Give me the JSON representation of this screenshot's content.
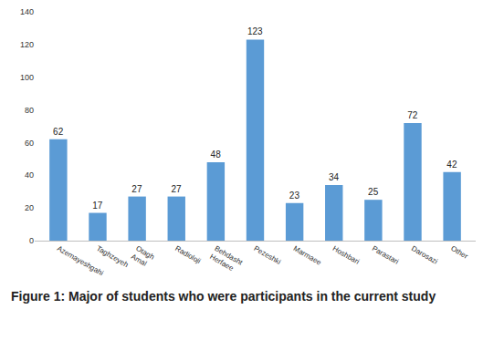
{
  "chart_data": {
    "type": "bar",
    "title": "Figure 1: Major of students who were participants in the current study",
    "categories": [
      "Azemayeshgahi",
      "Taghzeyeh",
      "Otagh Amal",
      "Radioloji",
      "Behdasht Herfaee",
      "Pezeshki",
      "Marmaee",
      "Hoshbari",
      "Parastari",
      "Darosazi",
      "Other"
    ],
    "values": [
      62,
      17,
      27,
      27,
      48,
      123,
      23,
      34,
      25,
      72,
      42
    ],
    "color": "#5b9bd5",
    "ylim": [
      0,
      140
    ],
    "yticks": [
      0,
      20,
      40,
      60,
      80,
      100,
      120,
      140
    ],
    "grid": false,
    "data_labels": true
  }
}
